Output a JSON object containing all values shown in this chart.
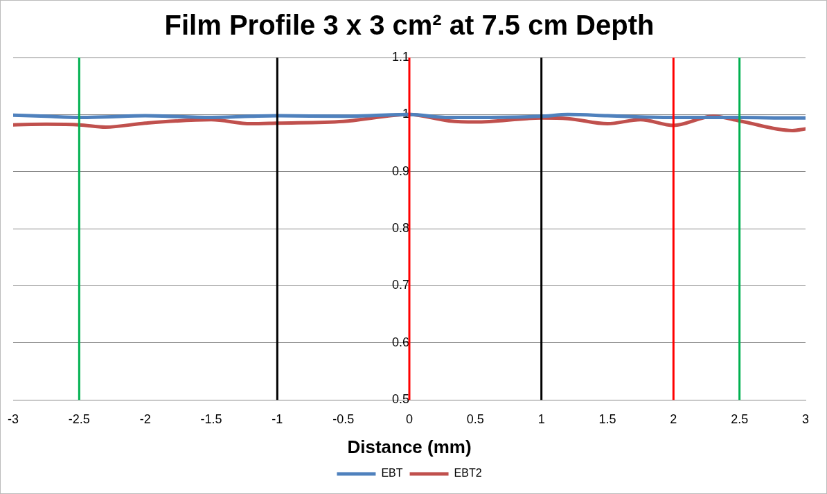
{
  "chart_data": {
    "type": "line",
    "title": "Film Profile 3 x 3 cm² at 7.5 cm Depth",
    "xlabel": "Distance (mm)",
    "x": [
      -3,
      -2.75,
      -2.5,
      -2.3,
      -2,
      -1.5,
      -1.2,
      -1,
      -0.5,
      0,
      0.3,
      0.5,
      1,
      1.2,
      1.5,
      1.75,
      2,
      2.3,
      2.5,
      2.9,
      3
    ],
    "series": [
      {
        "name": "EBT",
        "color": "#4f81bd",
        "values": [
          0.999,
          0.997,
          0.995,
          0.996,
          0.998,
          0.995,
          0.997,
          0.998,
          0.997,
          1.0,
          0.995,
          0.995,
          0.997,
          1.0,
          0.998,
          0.996,
          0.995,
          0.995,
          0.995,
          0.994,
          0.994
        ]
      },
      {
        "name": "EBT2",
        "color": "#c0504d",
        "values": [
          0.982,
          0.983,
          0.982,
          0.978,
          0.985,
          0.991,
          0.984,
          0.985,
          0.988,
          1.0,
          0.989,
          0.987,
          0.994,
          0.993,
          0.984,
          0.991,
          0.981,
          0.997,
          0.989,
          0.972,
          0.975
        ]
      }
    ],
    "xlim": [
      -3,
      3
    ],
    "xticks": [
      -3,
      -2.5,
      -2,
      -1.5,
      -1,
      -0.5,
      0,
      0.5,
      1,
      1.5,
      2,
      2.5,
      3
    ],
    "ylim": [
      0.5,
      1.1
    ],
    "yticks": [
      0.5,
      0.6,
      0.7,
      0.8,
      0.9,
      1,
      1.1
    ],
    "ref_lines": [
      {
        "axis": "x",
        "value": -2.5,
        "color": "#00b050"
      },
      {
        "axis": "x",
        "value": -1,
        "color": "#000000"
      },
      {
        "axis": "x",
        "value": 0,
        "color": "#ff0000"
      },
      {
        "axis": "x",
        "value": 1,
        "color": "#000000"
      },
      {
        "axis": "x",
        "value": 2,
        "color": "#ff0000"
      },
      {
        "axis": "x",
        "value": 2.5,
        "color": "#00b050"
      }
    ],
    "grid": "y",
    "legend": "bottom",
    "marker": "none",
    "line_style": "solid"
  }
}
